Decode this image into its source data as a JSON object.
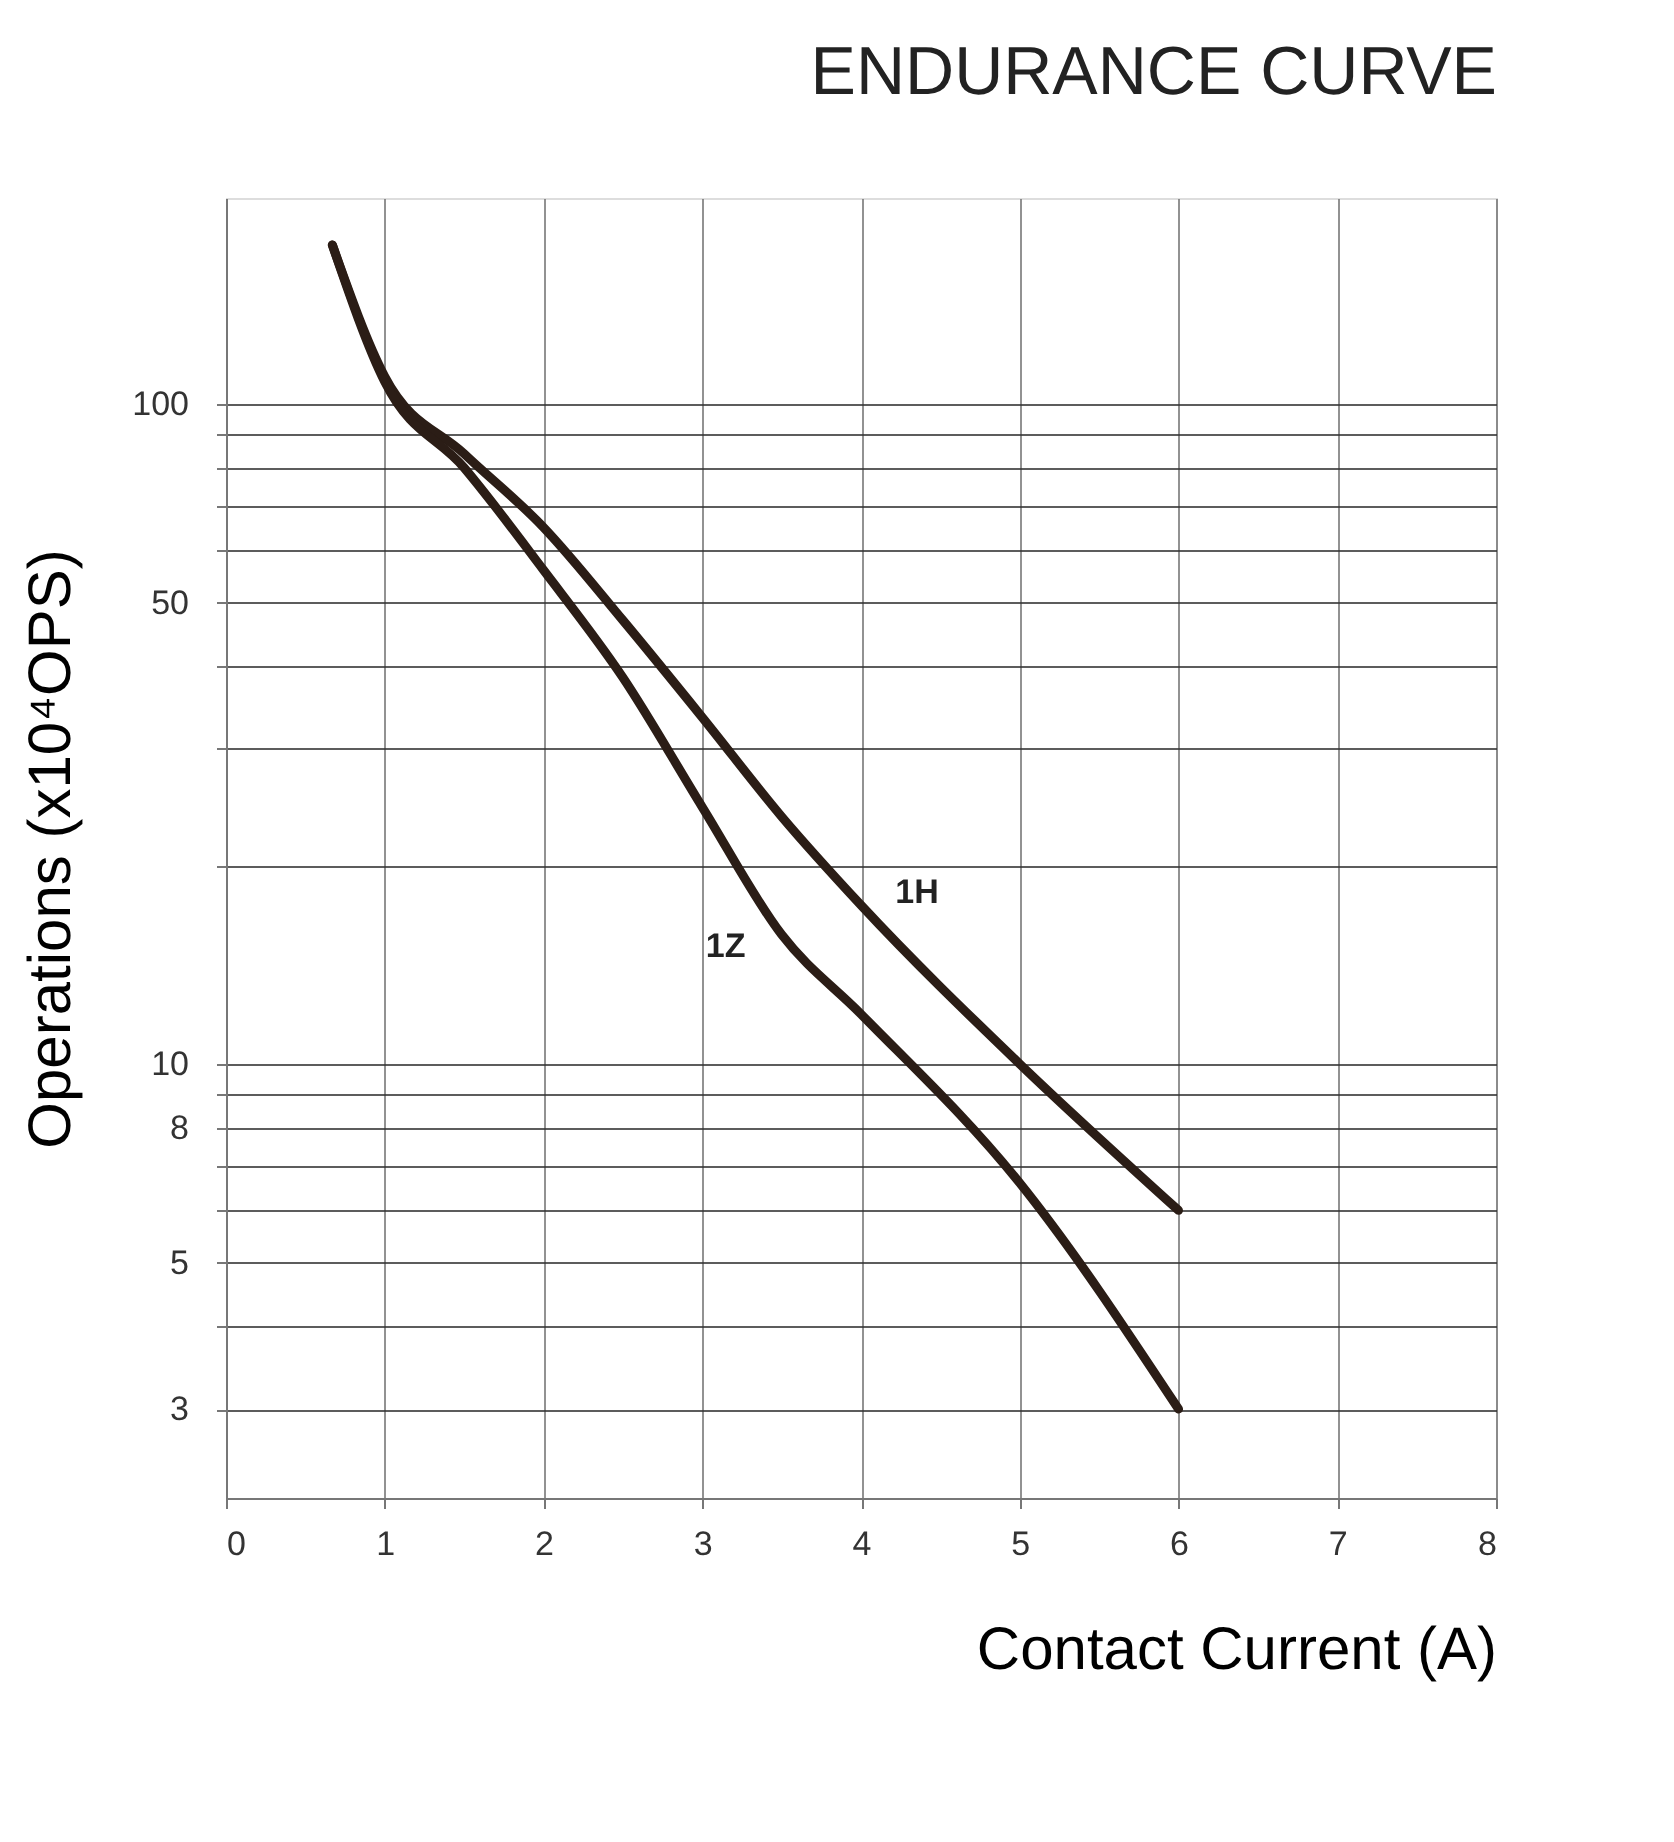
{
  "chart_data": {
    "type": "line",
    "title": "ENDURANCE CURVE",
    "xlabel": "Contact Current (A)",
    "ylabel": "Operations (x10⁴OPS)",
    "log": "y",
    "xlim": [
      0,
      8
    ],
    "xticks": [
      0,
      1,
      2,
      3,
      4,
      5,
      6,
      7,
      8
    ],
    "ylim": [
      2.2,
      205
    ],
    "yticks": [
      3,
      {
        "value": 4,
        "label": null
      },
      5,
      {
        "value": 6,
        "label": null
      },
      {
        "value": 7,
        "label": null
      },
      8,
      {
        "value": 9,
        "label": null
      },
      10,
      {
        "value": 20,
        "label": null
      },
      {
        "value": 30,
        "label": null
      },
      {
        "value": 40,
        "label": null
      },
      50,
      {
        "value": 60,
        "label": null
      },
      {
        "value": 70,
        "label": null
      },
      {
        "value": 80,
        "label": null
      },
      {
        "value": 90,
        "label": null
      },
      100
    ],
    "grid": true,
    "marker": "none",
    "line_style": "solid",
    "series": [
      {
        "name": "1H",
        "color": "#2b1d16",
        "x": [
          0.67,
          1.0,
          1.5,
          2.0,
          2.5,
          3.0,
          3.5,
          4.0,
          5.0,
          6.0
        ],
        "values": [
          174,
          110,
          84,
          65,
          47,
          33.5,
          23.7,
          17.4,
          10,
          6
        ]
      },
      {
        "name": "1Z",
        "color": "#2b1d16",
        "x": [
          0.67,
          1.0,
          1.5,
          2.0,
          2.5,
          3.0,
          3.5,
          4.0,
          5.0,
          6.0
        ],
        "values": [
          174,
          108,
          80,
          56,
          38.5,
          24.5,
          15.7,
          11.9,
          6.6,
          3
        ]
      }
    ]
  }
}
